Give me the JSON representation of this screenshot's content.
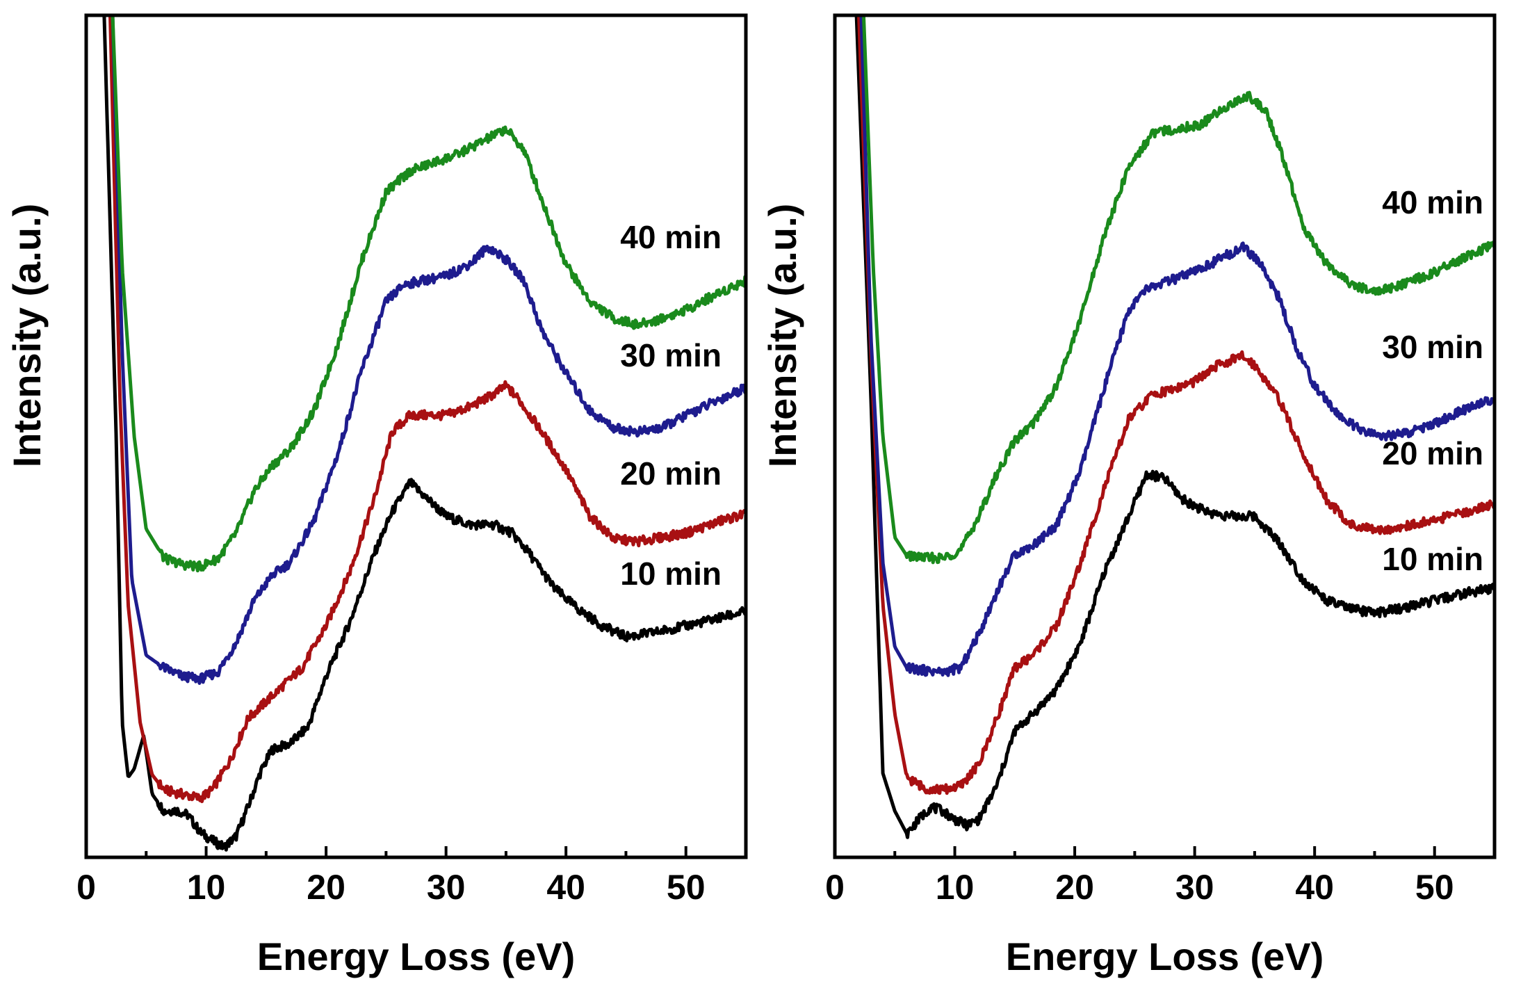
{
  "chart_data": [
    {
      "type": "line",
      "panel": "left",
      "title": "",
      "xlabel": "Energy Loss (eV)",
      "ylabel": "Intensity (a.u.)",
      "xlim": [
        0,
        55
      ],
      "ylim": [
        0,
        100
      ],
      "xticks": [
        0,
        10,
        20,
        30,
        40,
        50
      ],
      "xtick_labels": [
        "0",
        "10",
        "20",
        "30",
        "40",
        "50"
      ],
      "series": [
        {
          "name": "10 min",
          "color": "#000000",
          "x": [
            1.5,
            2.5,
            3.0,
            3.5,
            4.0,
            4.8,
            5.5,
            6.5,
            7.5,
            8.5,
            9.5,
            10.5,
            11.5,
            12.5,
            13.5,
            14.5,
            15.5,
            17,
            18.5,
            20,
            22,
            24,
            25.5,
            27,
            28.5,
            30,
            32,
            34,
            35.5,
            37,
            39,
            41,
            43,
            45,
            47,
            50,
            53,
            55
          ],
          "y": [
            100,
            50,
            16,
            9.5,
            10.5,
            14.5,
            7.5,
            5.5,
            5.6,
            5.0,
            3.0,
            2.0,
            1.2,
            2.5,
            6.0,
            10.0,
            12.8,
            13.5,
            15.5,
            21.5,
            28,
            36,
            41,
            44.5,
            42.5,
            40.5,
            39.5,
            39.5,
            38.5,
            36,
            32,
            29.5,
            27.5,
            26.2,
            26.6,
            27.5,
            28.5,
            29.2
          ]
        },
        {
          "name": "20 min",
          "color": "#a81012",
          "x": [
            2.0,
            2.8,
            3.5,
            4.5,
            5.5,
            6.5,
            8,
            9.5,
            10.5,
            12,
            13.5,
            15,
            16.5,
            18,
            20,
            22,
            24,
            25.5,
            27,
            28.5,
            30,
            32,
            34,
            35,
            36,
            38,
            40,
            42,
            44,
            46,
            48,
            50,
            53,
            55
          ],
          "y": [
            100,
            55,
            30,
            16,
            9.8,
            8.0,
            7.5,
            7.0,
            8.0,
            11.5,
            16.5,
            18.5,
            20.5,
            22.5,
            27.5,
            34,
            42.5,
            50.5,
            52.5,
            52.5,
            52.5,
            53.5,
            55.0,
            56.0,
            54.5,
            50.5,
            46,
            40.5,
            37.8,
            37.5,
            38.0,
            38.5,
            40.0,
            40.8
          ]
        },
        {
          "name": "30 min",
          "color": "#1e1c8e",
          "x": [
            2.2,
            3.0,
            3.8,
            5,
            6.5,
            8,
            9.5,
            11,
            12.5,
            14,
            15.5,
            17,
            19,
            21,
            23,
            25,
            26.5,
            28,
            30,
            32,
            33.5,
            35,
            36.5,
            38,
            40,
            42,
            44,
            46,
            48,
            50,
            53,
            55
          ],
          "y": [
            100,
            60,
            33,
            24,
            22.5,
            21.5,
            21.2,
            22.0,
            25.5,
            30.5,
            33.5,
            35,
            40,
            48,
            58,
            66,
            68,
            68.5,
            69,
            70.5,
            72.5,
            71,
            68.5,
            62.5,
            57.5,
            53,
            51,
            50.5,
            51,
            52.5,
            54.5,
            55.8
          ]
        },
        {
          "name": "40 min",
          "color": "#1a8a1c",
          "x": [
            2.2,
            3.0,
            4.0,
            5,
            6.5,
            8,
            9.5,
            11,
            12.5,
            14,
            15.5,
            17,
            19,
            21,
            23,
            25,
            27,
            29,
            31,
            33,
            35,
            36.5,
            38,
            40,
            42,
            44,
            46,
            48,
            50,
            52,
            55
          ],
          "y": [
            100,
            70,
            50,
            39,
            35.5,
            34.8,
            34.5,
            35.5,
            38.5,
            43.5,
            46.5,
            48.5,
            53,
            61,
            71,
            79,
            81.5,
            82.5,
            83.5,
            85,
            86.5,
            84,
            78,
            70.5,
            66,
            64,
            63.2,
            64,
            65,
            66.5,
            68.5
          ]
        }
      ]
    },
    {
      "type": "line",
      "panel": "right",
      "title": "",
      "xlabel": "Energy Loss (eV)",
      "ylabel": "Intensity (a.u.)",
      "xlim": [
        0,
        55
      ],
      "ylim": [
        0,
        100
      ],
      "xticks": [
        0,
        10,
        20,
        30,
        40,
        50
      ],
      "xtick_labels": [
        "0",
        "10",
        "20",
        "30",
        "40",
        "50"
      ],
      "series": [
        {
          "name": "10 min",
          "color": "#000000",
          "x": [
            1.8,
            3.0,
            4.0,
            5.0,
            6.0,
            7.0,
            8.0,
            9.0,
            10.0,
            11.0,
            12.0,
            13.5,
            15,
            16.5,
            18.5,
            20.5,
            22.5,
            24.5,
            26,
            27.5,
            29,
            31,
            33,
            35,
            37,
            39,
            41,
            43,
            45,
            47,
            50,
            53,
            55
          ],
          "y": [
            100,
            55,
            10,
            5.5,
            2.8,
            4.5,
            6.0,
            5.5,
            4.5,
            3.8,
            4.5,
            8.5,
            15,
            17,
            20,
            25.5,
            34,
            40.5,
            45.5,
            45,
            42.5,
            41,
            40.5,
            40.5,
            37.5,
            33,
            30.5,
            29.5,
            29,
            29.5,
            30.5,
            31.5,
            32.0
          ]
        },
        {
          "name": "20 min",
          "color": "#a81012",
          "x": [
            2.0,
            3.0,
            4.0,
            5,
            6,
            7.5,
            9,
            10.5,
            12,
            13.5,
            15,
            16.5,
            18.5,
            20.5,
            22.5,
            24.5,
            26.5,
            28,
            30,
            32,
            34,
            35,
            37,
            39,
            41,
            43,
            45,
            47,
            50,
            53,
            55
          ],
          "y": [
            100,
            60,
            30,
            17,
            9.5,
            8.2,
            8.0,
            8.5,
            11.0,
            16.5,
            22.5,
            24,
            27.5,
            35,
            44,
            52,
            55,
            55.5,
            56.5,
            58.5,
            59.5,
            58.5,
            54.5,
            48,
            42.5,
            39.5,
            38.8,
            39.2,
            40.0,
            41.2,
            42.0
          ]
        },
        {
          "name": "30 min",
          "color": "#1e1c8e",
          "x": [
            2.2,
            3.0,
            4.0,
            5,
            6,
            7.5,
            9,
            10.5,
            12,
            13.5,
            15,
            16.5,
            18.5,
            20.5,
            22.5,
            24.5,
            26,
            28,
            30,
            32,
            34,
            35.5,
            37,
            38.5,
            40,
            42,
            44,
            46,
            48,
            50,
            53,
            55
          ],
          "y": [
            100,
            62,
            35,
            25,
            22.5,
            22.2,
            22.0,
            22.5,
            26.5,
            31.5,
            36,
            37,
            39.5,
            46,
            56,
            65,
            67.5,
            68.5,
            69.5,
            71,
            72.5,
            70.5,
            66.5,
            60.5,
            56,
            52.5,
            50.5,
            50,
            50.5,
            51.5,
            53.5,
            54.5
          ]
        },
        {
          "name": "40 min",
          "color": "#1a8a1c",
          "x": [
            2.4,
            3.2,
            4.0,
            5,
            6,
            7.5,
            9,
            10.5,
            12,
            13.5,
            15,
            16.5,
            18.5,
            20.5,
            22.5,
            24.5,
            26.5,
            28.5,
            30.5,
            32.5,
            34.5,
            36,
            37.5,
            39,
            41,
            43,
            45,
            47,
            50,
            53,
            55
          ],
          "y": [
            100,
            70,
            50,
            38,
            35.8,
            35.6,
            35.5,
            36.5,
            40.5,
            45.5,
            49.5,
            51.5,
            56,
            64,
            74,
            82,
            86,
            86.5,
            87,
            89,
            90.5,
            88.5,
            82.5,
            75,
            70.5,
            68,
            67.2,
            67.8,
            69.5,
            71.5,
            72.8
          ]
        }
      ]
    }
  ]
}
